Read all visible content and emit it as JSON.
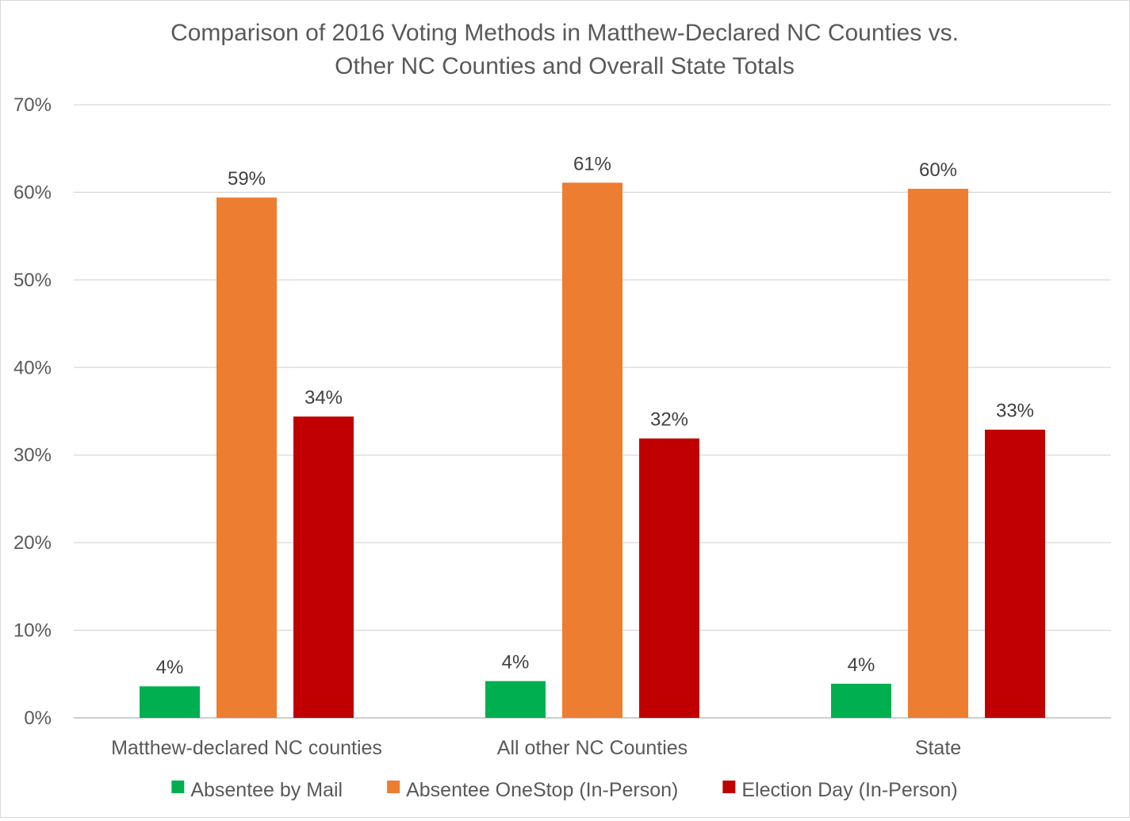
{
  "chart_data": {
    "type": "bar",
    "title_lines": [
      "Comparison of 2016 Voting Methods in Matthew-Declared NC Counties vs.",
      "Other NC Counties and Overall State Totals"
    ],
    "categories": [
      "Matthew-declared NC counties",
      "All other NC Counties",
      "State"
    ],
    "series": [
      {
        "name": "Absentee by Mail",
        "color": "#00b050",
        "values": [
          3.6,
          4.2,
          3.9
        ],
        "labels": [
          "4%",
          "4%",
          "4%"
        ]
      },
      {
        "name": "Absentee OneStop (In-Person)",
        "color": "#ed7d31",
        "values": [
          59.4,
          61.1,
          60.4
        ],
        "labels": [
          "59%",
          "61%",
          "60%"
        ]
      },
      {
        "name": "Election Day (In-Person)",
        "color": "#c00000",
        "values": [
          34.4,
          31.9,
          32.9
        ],
        "labels": [
          "34%",
          "32%",
          "33%"
        ]
      }
    ],
    "ylim": [
      0,
      70
    ],
    "yticks": [
      0,
      10,
      20,
      30,
      40,
      50,
      60,
      70
    ],
    "ytick_labels": [
      "0%",
      "10%",
      "20%",
      "30%",
      "40%",
      "50%",
      "60%",
      "70%"
    ],
    "grid": true,
    "legend_position": "bottom",
    "xlabel": "",
    "ylabel": ""
  }
}
